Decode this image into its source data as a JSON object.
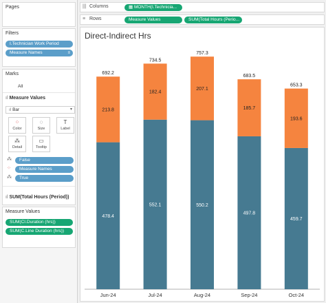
{
  "panes": {
    "pages": "Pages",
    "filters": "Filters",
    "marks": "Marks",
    "measure_values": "Measure Values"
  },
  "filters": [
    "I.Technician Work Period",
    "Measure Names"
  ],
  "marks": {
    "all": "All",
    "measure_values_header": "Measure Values",
    "mark_type": "Bar",
    "buttons": [
      "Color",
      "Size",
      "Label",
      "Detail",
      "Tooltip"
    ],
    "cards": [
      "False",
      "Measure Names",
      "True"
    ],
    "sum_label": "SUM(Total Hours (Period))"
  },
  "measure_values_list": [
    "SUM(CI.Duration (hrs))",
    "SUM(C.Line Duration (hrs))"
  ],
  "shelves": {
    "columns_label": "Columns",
    "columns_pill": "MONTH(I.Technicia...",
    "rows_label": "Rows",
    "rows_pills": [
      "Measure Values",
      "SUM(Total Hours (Perio..."
    ]
  },
  "colors": {
    "bottom": "#467a91",
    "top": "#f5843f",
    "pill_blue": "#5b9ec9",
    "pill_green": "#17a673"
  },
  "chart_data": {
    "type": "bar",
    "stacked": true,
    "title": "Direct-Indirect Hrs",
    "categories": [
      "Jun-24",
      "Jul-24",
      "Aug-24",
      "Sep-24",
      "Oct-24"
    ],
    "series": [
      {
        "values": [
          478.4,
          552.1,
          550.2,
          497.8,
          459.7
        ]
      },
      {
        "values": [
          213.8,
          182.4,
          207.1,
          185.7,
          193.6
        ]
      }
    ],
    "totals": [
      692.2,
      734.5,
      757.3,
      683.5,
      653.3
    ],
    "ylim": [
      0,
      760
    ],
    "grid": false
  }
}
